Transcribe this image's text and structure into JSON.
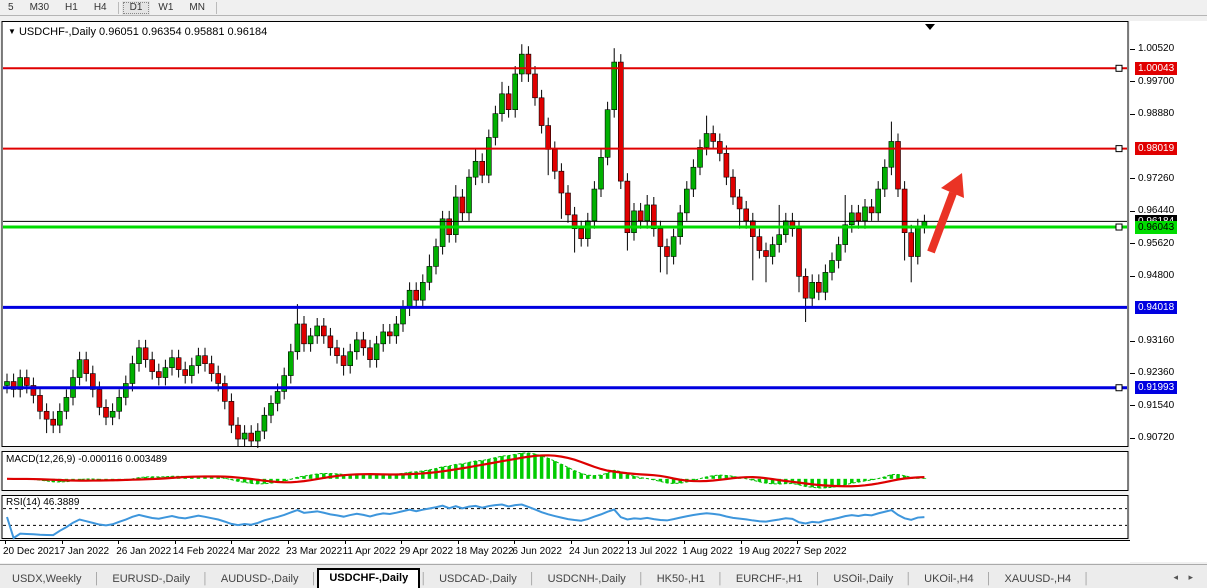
{
  "toolbar": {
    "buttons": [
      "5",
      "M30",
      "H1",
      "H4",
      "D1",
      "W1",
      "MN"
    ],
    "active": "D1"
  },
  "chart": {
    "title": "USDCHF-,Daily",
    "ohlc_text": "0.96051 0.96354 0.95881 0.96184",
    "last_candle": {
      "o": 0.96051,
      "h": 0.96354,
      "l": 0.95881,
      "c": 0.96184
    },
    "colors": {
      "bull": "#00B000",
      "bear": "#E00000",
      "wick": "#000000",
      "red_line": "#E00000",
      "green_line": "#00DC00",
      "blue_line": "#0000E0",
      "black_line": "#000000",
      "arrow": "#EA3325"
    },
    "price_axis": {
      "min": 0.9055,
      "max": 1.0121,
      "ticks": [
        1.0052,
        0.997,
        0.9888,
        0.9726,
        0.9644,
        0.9562,
        0.948,
        0.9316,
        0.9236,
        0.9154,
        0.9072
      ]
    },
    "hlines": [
      {
        "price": 1.00043,
        "label": "1.00043",
        "color": "#E00000",
        "width": 2,
        "badge_bg": "#E00000",
        "badge_fg": "#ffffff",
        "handle": true
      },
      {
        "price": 0.98019,
        "label": "0.98019",
        "color": "#E00000",
        "width": 2,
        "badge_bg": "#E00000",
        "badge_fg": "#ffffff",
        "handle": true
      },
      {
        "price": 0.96184,
        "label": "0.96184",
        "color": "#000000",
        "width": 1,
        "badge_bg": "#000000",
        "badge_fg": "#ffffff",
        "handle": false
      },
      {
        "price": 0.96043,
        "label": "0.96043",
        "color": "#00DC00",
        "width": 3,
        "badge_bg": "#00DC00",
        "badge_fg": "#000000",
        "handle": true
      },
      {
        "price": 0.94018,
        "label": "0.94018",
        "color": "#0000E0",
        "width": 3,
        "badge_bg": "#0000E0",
        "badge_fg": "#ffffff",
        "handle": false
      },
      {
        "price": 0.91993,
        "label": "0.91993",
        "color": "#0000E0",
        "width": 3,
        "badge_bg": "#0000E0",
        "badge_fg": "#ffffff",
        "handle": true
      }
    ]
  },
  "chart_data": {
    "type": "candlestick-ohlc",
    "symbol": "USDCHF-",
    "timeframe": "Daily",
    "note": "closes read off chart; open of bar i equals close of bar i-1; default wick 0.002 with overrides below; last bar OHLC exact from window title",
    "open_first": 0.9205,
    "closes": [
      0.9215,
      0.9195,
      0.9225,
      0.9205,
      0.918,
      0.914,
      0.912,
      0.9105,
      0.914,
      0.9175,
      0.9225,
      0.927,
      0.9235,
      0.9195,
      0.915,
      0.9125,
      0.914,
      0.9175,
      0.921,
      0.926,
      0.93,
      0.927,
      0.924,
      0.9225,
      0.925,
      0.9275,
      0.9245,
      0.923,
      0.9255,
      0.928,
      0.926,
      0.9235,
      0.921,
      0.9165,
      0.9105,
      0.907,
      0.9085,
      0.9065,
      0.909,
      0.913,
      0.916,
      0.919,
      0.923,
      0.929,
      0.936,
      0.931,
      0.933,
      0.9355,
      0.933,
      0.93,
      0.928,
      0.9255,
      0.929,
      0.932,
      0.93,
      0.927,
      0.931,
      0.934,
      0.933,
      0.936,
      0.94,
      0.9445,
      0.942,
      0.9465,
      0.9505,
      0.9555,
      0.9625,
      0.9585,
      0.968,
      0.964,
      0.973,
      0.977,
      0.9735,
      0.983,
      0.989,
      0.994,
      0.99,
      0.999,
      1.004,
      0.999,
      0.993,
      0.986,
      0.98,
      0.9745,
      0.969,
      0.9635,
      0.96,
      0.9575,
      0.962,
      0.97,
      0.978,
      0.99,
      1.002,
      0.972,
      0.959,
      0.9645,
      0.962,
      0.966,
      0.96,
      0.9555,
      0.953,
      0.958,
      0.964,
      0.97,
      0.9755,
      0.9805,
      0.984,
      0.982,
      0.979,
      0.973,
      0.968,
      0.965,
      0.962,
      0.958,
      0.9545,
      0.953,
      0.956,
      0.9585,
      0.962,
      0.96,
      0.948,
      0.9425,
      0.9465,
      0.944,
      0.949,
      0.952,
      0.956,
      0.961,
      0.964,
      0.962,
      0.9655,
      0.964,
      0.97,
      0.9755,
      0.982,
      0.97,
      0.959,
      0.953,
      0.96051,
      0.96184
    ],
    "default_wick": 0.002,
    "high_overrides": {
      "11": 0.929,
      "44": 0.941,
      "64": 0.9535,
      "68": 0.971,
      "71": 0.98,
      "75": 0.997,
      "78": 1.0065,
      "92": 1.0055,
      "97": 0.9685,
      "106": 0.9885,
      "117": 0.966,
      "127": 0.9685,
      "134": 0.987,
      "139": 0.96354
    },
    "low_overrides": {
      "6": 0.9085,
      "15": 0.9105,
      "35": 0.905,
      "37": 0.905,
      "51": 0.923,
      "82": 0.9735,
      "84": 0.9625,
      "86": 0.954,
      "93": 0.97,
      "94": 0.9545,
      "99": 0.949,
      "100": 0.9485,
      "111": 0.96,
      "113": 0.947,
      "115": 0.9465,
      "120": 0.944,
      "121": 0.9365,
      "136": 0.952,
      "137": 0.9465,
      "139": 0.95881
    },
    "horizontal_levels": [
      1.00043,
      0.98019,
      0.96184,
      0.96043,
      0.94018,
      0.91993
    ],
    "indicators": [
      {
        "name": "MACD",
        "params": [
          12,
          26,
          9
        ],
        "current_main": -0.000116,
        "current_signal": 0.003489
      },
      {
        "name": "RSI",
        "params": [
          14
        ],
        "current": 46.3889
      }
    ]
  },
  "macd": {
    "label": "MACD(12,26,9)",
    "values": "-0.000116 0.003489",
    "scale_top": "0.015654",
    "scale_zero": "0.00",
    "scale_bottom": "-0.007259",
    "hist_color": "#00CC00",
    "signal_color": "#DD0000"
  },
  "rsi": {
    "label": "RSI(14)",
    "value": "46.3889",
    "scale": [
      "100",
      "70",
      "30",
      "0"
    ],
    "upper_level": 70,
    "lower_level": 30,
    "line_color": "#3E96DC"
  },
  "dates": [
    "20 Dec 2021",
    "7 Jan 2022",
    "26 Jan 2022",
    "14 Feb 2022",
    "4 Mar 2022",
    "23 Mar 2022",
    "11 Apr 2022",
    "29 Apr 2022",
    "18 May 2022",
    "6 Jun 2022",
    "24 Jun 2022",
    "13 Jul 2022",
    "1 Aug 2022",
    "19 Aug 2022",
    "7 Sep 2022"
  ],
  "tabs": {
    "items": [
      "USDX,Weekly",
      "EURUSD-,Daily",
      "AUDUSD-,Daily",
      "USDCHF-,Daily",
      "USDCAD-,Daily",
      "USDCNH-,Daily",
      "HK50-,H1",
      "EURCHF-,H1",
      "USOil-,Daily",
      "UKOil-,H4",
      "XAUUSD-,H4"
    ],
    "active_index": 3,
    "scroll_arrows": "◂ ▸"
  }
}
